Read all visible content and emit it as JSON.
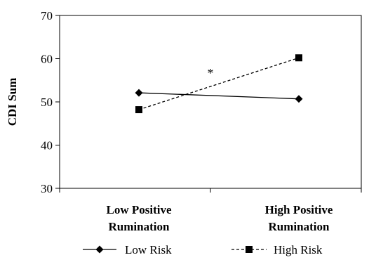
{
  "chart_data": {
    "type": "line",
    "title": "",
    "xlabel": "",
    "ylabel": "CDI Sum",
    "ylim": [
      30,
      70
    ],
    "yticks": [
      30,
      40,
      50,
      60,
      70
    ],
    "categories": [
      [
        "Low Positive",
        "Rumination"
      ],
      [
        "High Positive",
        "Rumination"
      ]
    ],
    "series": [
      {
        "name": "Low Risk",
        "values": [
          52.1,
          50.7
        ],
        "marker": "diamond",
        "line": "solid",
        "color": "#000000"
      },
      {
        "name": "High Risk",
        "values": [
          48.2,
          60.2
        ],
        "marker": "square",
        "line": "dashed",
        "color": "#000000"
      }
    ],
    "annotations": [
      {
        "text": "*"
      }
    ],
    "grid": false,
    "legend": "bottom"
  }
}
